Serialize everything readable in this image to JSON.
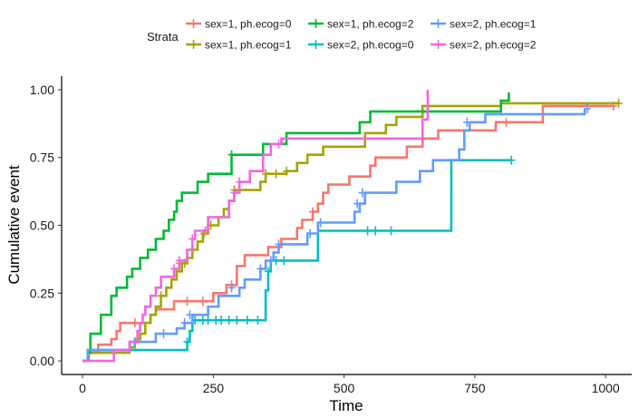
{
  "chart_data": {
    "type": "line",
    "step": true,
    "legend_title": "Strata",
    "legend_position": "top",
    "xlabel": "Time",
    "ylabel": "Cumulative event",
    "xlim": [
      -40,
      1050
    ],
    "ylim": [
      -0.05,
      1.05
    ],
    "x_ticks": [
      0,
      250,
      500,
      750,
      1000
    ],
    "x_tick_labels": [
      "0",
      "250",
      "500",
      "750",
      "1000"
    ],
    "y_ticks": [
      0,
      0.25,
      0.5,
      0.75,
      1.0
    ],
    "y_tick_labels": [
      "0.00",
      "0.25",
      "0.50",
      "0.75",
      "1.00"
    ],
    "grid": false,
    "series": [
      {
        "name": "sex=1, ph.ecog=0",
        "color": "#F8766D",
        "points": [
          [
            0,
            0
          ],
          [
            12,
            0.03
          ],
          [
            30,
            0.06
          ],
          [
            55,
            0.08
          ],
          [
            65,
            0.11
          ],
          [
            72,
            0.14
          ],
          [
            130,
            0.17
          ],
          [
            140,
            0.19
          ],
          [
            175,
            0.22
          ],
          [
            230,
            0.22
          ],
          [
            250,
            0.25
          ],
          [
            275,
            0.28
          ],
          [
            295,
            0.35
          ],
          [
            310,
            0.39
          ],
          [
            355,
            0.42
          ],
          [
            380,
            0.45
          ],
          [
            410,
            0.49
          ],
          [
            420,
            0.52
          ],
          [
            440,
            0.55
          ],
          [
            450,
            0.58
          ],
          [
            460,
            0.62
          ],
          [
            470,
            0.65
          ],
          [
            510,
            0.68
          ],
          [
            550,
            0.72
          ],
          [
            560,
            0.75
          ],
          [
            620,
            0.79
          ],
          [
            650,
            0.82
          ],
          [
            680,
            0.85
          ],
          [
            790,
            0.88
          ],
          [
            880,
            0.94
          ],
          [
            1015,
            0.94
          ]
        ],
        "censored": [
          [
            100,
            0.14
          ],
          [
            200,
            0.22
          ],
          [
            230,
            0.22
          ],
          [
            285,
            0.28
          ],
          [
            440,
            0.55
          ],
          [
            810,
            0.88
          ],
          [
            1015,
            0.94
          ]
        ]
      },
      {
        "name": "sex=1, ph.ecog=1",
        "color": "#A3A500",
        "points": [
          [
            0,
            0
          ],
          [
            10,
            0.03
          ],
          [
            90,
            0.05
          ],
          [
            100,
            0.08
          ],
          [
            110,
            0.1
          ],
          [
            120,
            0.14
          ],
          [
            130,
            0.17
          ],
          [
            140,
            0.2
          ],
          [
            150,
            0.24
          ],
          [
            160,
            0.27
          ],
          [
            170,
            0.3
          ],
          [
            180,
            0.33
          ],
          [
            190,
            0.36
          ],
          [
            200,
            0.38
          ],
          [
            210,
            0.41
          ],
          [
            220,
            0.44
          ],
          [
            230,
            0.47
          ],
          [
            240,
            0.5
          ],
          [
            260,
            0.53
          ],
          [
            270,
            0.56
          ],
          [
            280,
            0.59
          ],
          [
            290,
            0.63
          ],
          [
            340,
            0.66
          ],
          [
            350,
            0.69
          ],
          [
            390,
            0.7
          ],
          [
            410,
            0.73
          ],
          [
            430,
            0.76
          ],
          [
            460,
            0.79
          ],
          [
            540,
            0.84
          ],
          [
            580,
            0.87
          ],
          [
            600,
            0.9
          ],
          [
            650,
            0.94
          ],
          [
            800,
            0.95
          ],
          [
            1025,
            0.95
          ]
        ],
        "censored": [
          [
            150,
            0.24
          ],
          [
            185,
            0.36
          ],
          [
            195,
            0.36
          ],
          [
            232,
            0.47
          ],
          [
            245,
            0.5
          ],
          [
            290,
            0.63
          ],
          [
            350,
            0.69
          ],
          [
            370,
            0.69
          ],
          [
            390,
            0.7
          ],
          [
            1025,
            0.95
          ]
        ]
      },
      {
        "name": "sex=1, ph.ecog=2",
        "color": "#00BA38",
        "points": [
          [
            0,
            0
          ],
          [
            10,
            0.03
          ],
          [
            15,
            0.1
          ],
          [
            35,
            0.17
          ],
          [
            55,
            0.24
          ],
          [
            65,
            0.27
          ],
          [
            85,
            0.31
          ],
          [
            95,
            0.34
          ],
          [
            110,
            0.38
          ],
          [
            125,
            0.41
          ],
          [
            140,
            0.45
          ],
          [
            155,
            0.48
          ],
          [
            165,
            0.52
          ],
          [
            175,
            0.55
          ],
          [
            180,
            0.59
          ],
          [
            190,
            0.62
          ],
          [
            220,
            0.66
          ],
          [
            240,
            0.69
          ],
          [
            285,
            0.76
          ],
          [
            345,
            0.8
          ],
          [
            390,
            0.84
          ],
          [
            530,
            0.88
          ],
          [
            550,
            0.92
          ],
          [
            650,
            0.92
          ],
          [
            800,
            0.96
          ],
          [
            815,
            0.99
          ]
        ],
        "censored": [
          [
            285,
            0.76
          ]
        ]
      },
      {
        "name": "sex=2, ph.ecog=0",
        "color": "#00BFC4",
        "points": [
          [
            0,
            0
          ],
          [
            10,
            0.04
          ],
          [
            200,
            0.07
          ],
          [
            205,
            0.11
          ],
          [
            210,
            0.15
          ],
          [
            340,
            0.15
          ],
          [
            350,
            0.26
          ],
          [
            355,
            0.33
          ],
          [
            360,
            0.37
          ],
          [
            380,
            0.37
          ],
          [
            395,
            0.37
          ],
          [
            440,
            0.37
          ],
          [
            450,
            0.48
          ],
          [
            700,
            0.48
          ],
          [
            705,
            0.74
          ],
          [
            820,
            0.74
          ]
        ],
        "censored": [
          [
            200,
            0.07
          ],
          [
            215,
            0.15
          ],
          [
            230,
            0.15
          ],
          [
            240,
            0.15
          ],
          [
            255,
            0.15
          ],
          [
            265,
            0.15
          ],
          [
            280,
            0.15
          ],
          [
            295,
            0.15
          ],
          [
            315,
            0.15
          ],
          [
            335,
            0.15
          ],
          [
            355,
            0.33
          ],
          [
            370,
            0.37
          ],
          [
            385,
            0.37
          ],
          [
            545,
            0.48
          ],
          [
            560,
            0.48
          ],
          [
            590,
            0.48
          ],
          [
            820,
            0.74
          ]
        ]
      },
      {
        "name": "sex=2, ph.ecog=1",
        "color": "#619CFF",
        "points": [
          [
            0,
            0
          ],
          [
            10,
            0.04
          ],
          [
            90,
            0.07
          ],
          [
            140,
            0.1
          ],
          [
            180,
            0.12
          ],
          [
            195,
            0.14
          ],
          [
            210,
            0.17
          ],
          [
            240,
            0.2
          ],
          [
            260,
            0.24
          ],
          [
            300,
            0.27
          ],
          [
            310,
            0.3
          ],
          [
            340,
            0.34
          ],
          [
            350,
            0.37
          ],
          [
            365,
            0.4
          ],
          [
            375,
            0.43
          ],
          [
            430,
            0.47
          ],
          [
            450,
            0.51
          ],
          [
            520,
            0.55
          ],
          [
            530,
            0.58
          ],
          [
            540,
            0.62
          ],
          [
            600,
            0.66
          ],
          [
            645,
            0.7
          ],
          [
            670,
            0.74
          ],
          [
            720,
            0.78
          ],
          [
            730,
            0.85
          ],
          [
            740,
            0.88
          ],
          [
            770,
            0.91
          ],
          [
            960,
            0.93
          ]
        ],
        "censored": [
          [
            100,
            0.07
          ],
          [
            155,
            0.1
          ],
          [
            195,
            0.14
          ],
          [
            205,
            0.17
          ],
          [
            285,
            0.27
          ],
          [
            340,
            0.34
          ],
          [
            360,
            0.37
          ],
          [
            375,
            0.43
          ],
          [
            435,
            0.47
          ],
          [
            455,
            0.51
          ],
          [
            525,
            0.58
          ],
          [
            535,
            0.62
          ],
          [
            735,
            0.88
          ],
          [
            965,
            0.93
          ]
        ]
      },
      {
        "name": "sex=2, ph.ecog=2",
        "color": "#F564E3",
        "points": [
          [
            0,
            0
          ],
          [
            60,
            0.04
          ],
          [
            90,
            0.07
          ],
          [
            105,
            0.11
          ],
          [
            110,
            0.14
          ],
          [
            115,
            0.17
          ],
          [
            120,
            0.2
          ],
          [
            130,
            0.24
          ],
          [
            140,
            0.27
          ],
          [
            150,
            0.31
          ],
          [
            175,
            0.34
          ],
          [
            185,
            0.37
          ],
          [
            200,
            0.41
          ],
          [
            210,
            0.45
          ],
          [
            215,
            0.48
          ],
          [
            240,
            0.53
          ],
          [
            280,
            0.59
          ],
          [
            290,
            0.62
          ],
          [
            300,
            0.66
          ],
          [
            320,
            0.7
          ],
          [
            345,
            0.76
          ],
          [
            360,
            0.8
          ],
          [
            380,
            0.82
          ],
          [
            650,
            0.89
          ],
          [
            660,
            1.0
          ]
        ],
        "censored": [
          [
            175,
            0.34
          ],
          [
            185,
            0.37
          ],
          [
            210,
            0.45
          ],
          [
            235,
            0.48
          ],
          [
            290,
            0.62
          ],
          [
            300,
            0.66
          ],
          [
            375,
            0.8
          ]
        ]
      }
    ]
  }
}
